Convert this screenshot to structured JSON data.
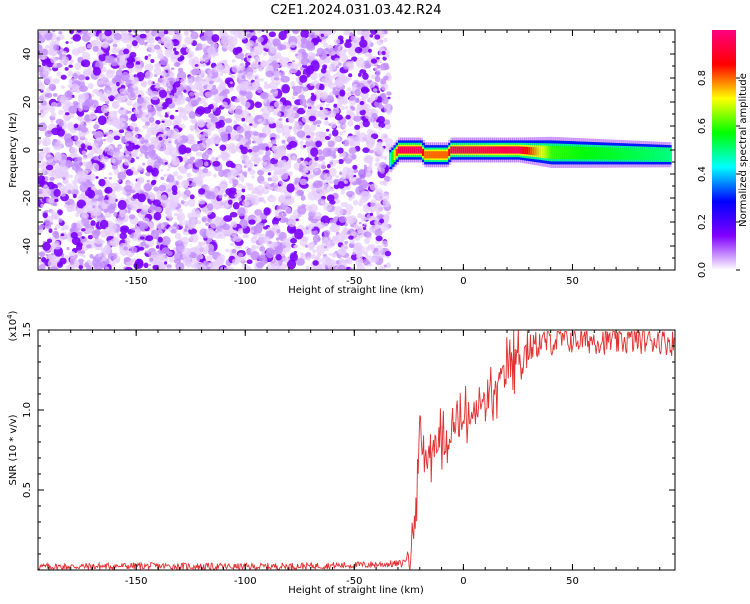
{
  "title": "C2E1.2024.031.03.42.R24",
  "chart_data": [
    {
      "type": "heatmap",
      "xlabel": "Height of straight line (km)",
      "ylabel": "Frequency (Hz)",
      "xlim": [
        -195,
        97
      ],
      "ylim": [
        -50,
        50
      ],
      "x_ticks": [
        -150,
        -100,
        -50,
        0,
        50
      ],
      "y_ticks": [
        -40,
        -20,
        0,
        20,
        40
      ],
      "noise_region": {
        "x_from": -195,
        "x_to": -34,
        "y_from": -50,
        "y_to": 50,
        "amplitude": 0.15
      },
      "signal_band": [
        {
          "x": -34,
          "freq": -4,
          "width": 4,
          "amplitude": 0.45
        },
        {
          "x": -30,
          "freq": 0,
          "width": 4,
          "amplitude": 0.95
        },
        {
          "x": -20,
          "freq": 0,
          "width": 4,
          "amplitude": 0.95
        },
        {
          "x": -18,
          "freq": -2,
          "width": 4,
          "amplitude": 0.8
        },
        {
          "x": -8,
          "freq": -2,
          "width": 4,
          "amplitude": 0.8
        },
        {
          "x": -6,
          "freq": 0,
          "width": 4,
          "amplitude": 0.95
        },
        {
          "x": 25,
          "freq": 0,
          "width": 4,
          "amplitude": 0.95
        },
        {
          "x": 40,
          "freq": -1,
          "width": 5,
          "amplitude": 0.6
        },
        {
          "x": 95,
          "freq": -2,
          "width": 4,
          "amplitude": 0.5
        }
      ],
      "colorbar": {
        "label": "Normalized spectral amplitude",
        "range": [
          0,
          1
        ],
        "ticks": [
          "0.0",
          "0.2",
          "0.4",
          "0.6",
          "0.8"
        ],
        "colors": [
          "#ffffff",
          "#8000ff",
          "#0000ff",
          "#00ffff",
          "#00ff00",
          "#ffff00",
          "#ff0000",
          "#ff0080"
        ]
      }
    },
    {
      "type": "line",
      "xlabel": "Height of straight line (km)",
      "ylabel": "SNR (10 * v/v)",
      "scale_label": "(x10",
      "scale_exponent": "4",
      "scale_close": ")",
      "xlim": [
        -195,
        97
      ],
      "ylim": [
        0,
        15000
      ],
      "x_ticks": [
        -150,
        -100,
        -50,
        0,
        50
      ],
      "y_ticks": [
        "1.5",
        "1.0",
        "0.5"
      ],
      "y_tick_values": [
        15000,
        10000,
        5000
      ],
      "color": "#e03030",
      "series": [
        {
          "x": [
            -195,
            -150,
            -100,
            -50,
            -28,
            -24,
            -22,
            -21,
            -20,
            -18,
            -15,
            -12,
            -8,
            -5,
            0,
            5,
            10,
            15,
            20,
            25,
            30,
            35,
            40,
            50,
            60,
            70,
            80,
            90,
            97
          ],
          "y": [
            200,
            250,
            200,
            300,
            400,
            1200,
            3500,
            6200,
            7800,
            7200,
            7500,
            8200,
            8000,
            8800,
            9300,
            9800,
            10500,
            11200,
            12600,
            13300,
            13800,
            14200,
            14300,
            14400,
            14400,
            14300,
            14400,
            14400,
            14200
          ]
        }
      ]
    }
  ]
}
